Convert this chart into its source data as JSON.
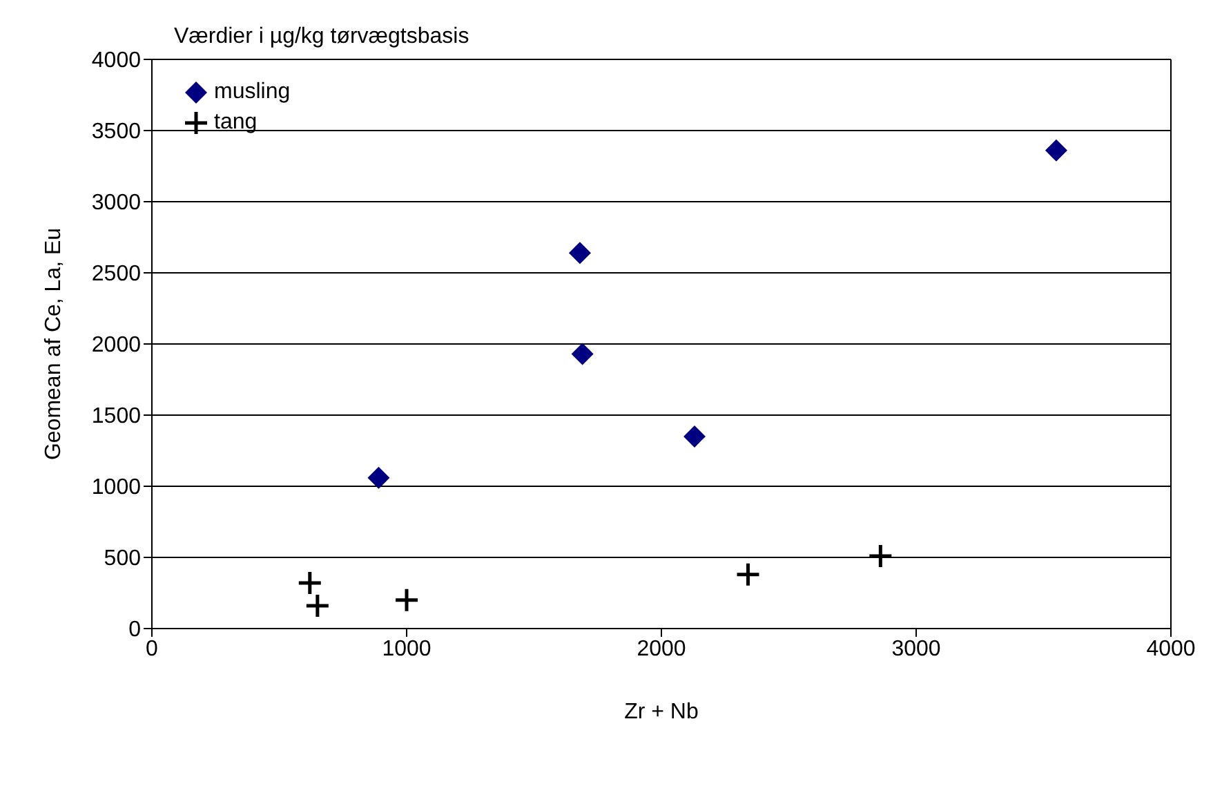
{
  "chart_data": {
    "type": "scatter",
    "title": "Værdier i µg/kg tørvægtsbasis",
    "xlabel": "Zr + Nb",
    "ylabel": "Geomean af Ce, La, Eu",
    "series": [
      {
        "name": "musling",
        "color": "#000080",
        "marker": "diamond",
        "x": [
          890,
          1680,
          1690,
          2130,
          3550
        ],
        "values": [
          1060,
          2640,
          1930,
          1350,
          3360
        ]
      },
      {
        "name": "tang",
        "color": "#000000",
        "marker": "cross",
        "x": [
          620,
          650,
          1000,
          2340,
          2860
        ],
        "values": [
          320,
          160,
          200,
          380,
          510
        ]
      }
    ],
    "xlim": [
      0,
      4000
    ],
    "xticks": [
      0,
      1000,
      2000,
      3000,
      4000
    ],
    "ylim": [
      0,
      4000
    ],
    "yticks": [
      0,
      500,
      1000,
      1500,
      2000,
      2500,
      3000,
      3500,
      4000
    ],
    "grid": "y",
    "legend": "top left"
  }
}
